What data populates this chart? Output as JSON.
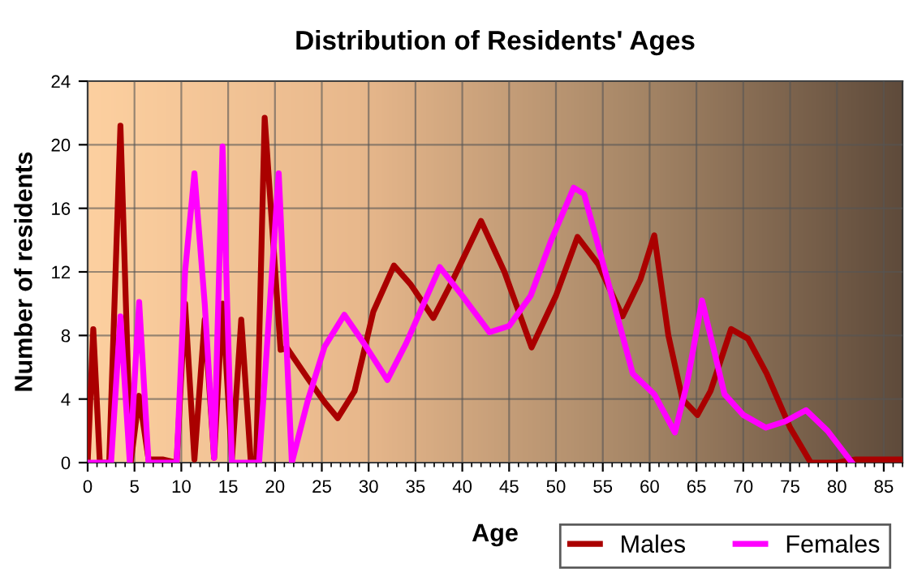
{
  "chart_data": {
    "type": "line",
    "title": "Distribution of Residents' Ages",
    "xlabel": "Age",
    "ylabel": "Number of residents",
    "xlim": [
      0,
      87
    ],
    "xticks": [
      0,
      5,
      10,
      15,
      20,
      25,
      30,
      35,
      40,
      45,
      50,
      55,
      60,
      65,
      70,
      75,
      80,
      85
    ],
    "ylim": [
      0,
      24
    ],
    "yticks": [
      0,
      4,
      8,
      12,
      16,
      20,
      24
    ],
    "grid": true,
    "legend": "bottom right",
    "marker": "none",
    "line_style": "solid",
    "series": [
      {
        "name": "Males",
        "color": "#aa0000",
        "x": [
          0,
          0.6,
          1.3,
          2.3,
          3.5,
          4.6,
          5.5,
          6.5,
          8,
          9.5,
          10.4,
          11.4,
          12.5,
          13.5,
          14.4,
          15.4,
          16.4,
          17.4,
          18,
          18.9,
          20.6,
          21.3,
          23.5,
          25.3,
          26.7,
          28.5,
          30.5,
          32.7,
          34.5,
          36.9,
          39,
          42,
          44.5,
          47.4,
          50,
          52.3,
          54.5,
          57.1,
          59,
          60.5,
          62,
          63.5,
          65.1,
          66.5,
          68.7,
          70.5,
          72.5,
          75,
          77.2,
          80,
          82,
          87
        ],
        "values": [
          0,
          8.4,
          0,
          0,
          21.2,
          0,
          4.2,
          0.2,
          0.2,
          0,
          10,
          0.2,
          9,
          0.3,
          10,
          0.2,
          9,
          0.2,
          0.2,
          21.7,
          7.1,
          7.2,
          5.3,
          3.8,
          2.8,
          4.5,
          9.5,
          12.4,
          11.2,
          9.1,
          11.5,
          15.2,
          12,
          7.25,
          10.5,
          14.2,
          12.5,
          9.2,
          11.5,
          14.3,
          8,
          4,
          3,
          4.5,
          8.4,
          7.8,
          5.6,
          2.2,
          0,
          0,
          0.2,
          0.2
        ]
      },
      {
        "name": "Females",
        "color": "#ff00ff",
        "x": [
          0,
          2.5,
          3.5,
          4.5,
          5.5,
          6.5,
          9.5,
          10.4,
          11.4,
          12.5,
          13.5,
          14.4,
          15.4,
          18.3,
          20.4,
          21.8,
          23.5,
          25.3,
          27.4,
          29.5,
          32,
          34,
          37.6,
          40,
          42.9,
          45,
          47.3,
          49.5,
          51.9,
          53,
          55.5,
          58.2,
          60.5,
          62.7,
          64,
          65.6,
          68,
          70,
          72.4,
          74.5,
          76.7,
          79,
          81.6
        ],
        "values": [
          0,
          0,
          9.2,
          0,
          10.1,
          0,
          0,
          12,
          18.2,
          10,
          0.3,
          19.9,
          0,
          0,
          18.2,
          0,
          3.9,
          7.3,
          9.3,
          7.5,
          5.2,
          7.5,
          12.3,
          10.5,
          8.2,
          8.6,
          10.5,
          14,
          17.3,
          16.9,
          11.5,
          5.6,
          4.3,
          1.9,
          5,
          10.2,
          4.3,
          3,
          2.2,
          2.6,
          3.3,
          2,
          0
        ]
      }
    ]
  }
}
